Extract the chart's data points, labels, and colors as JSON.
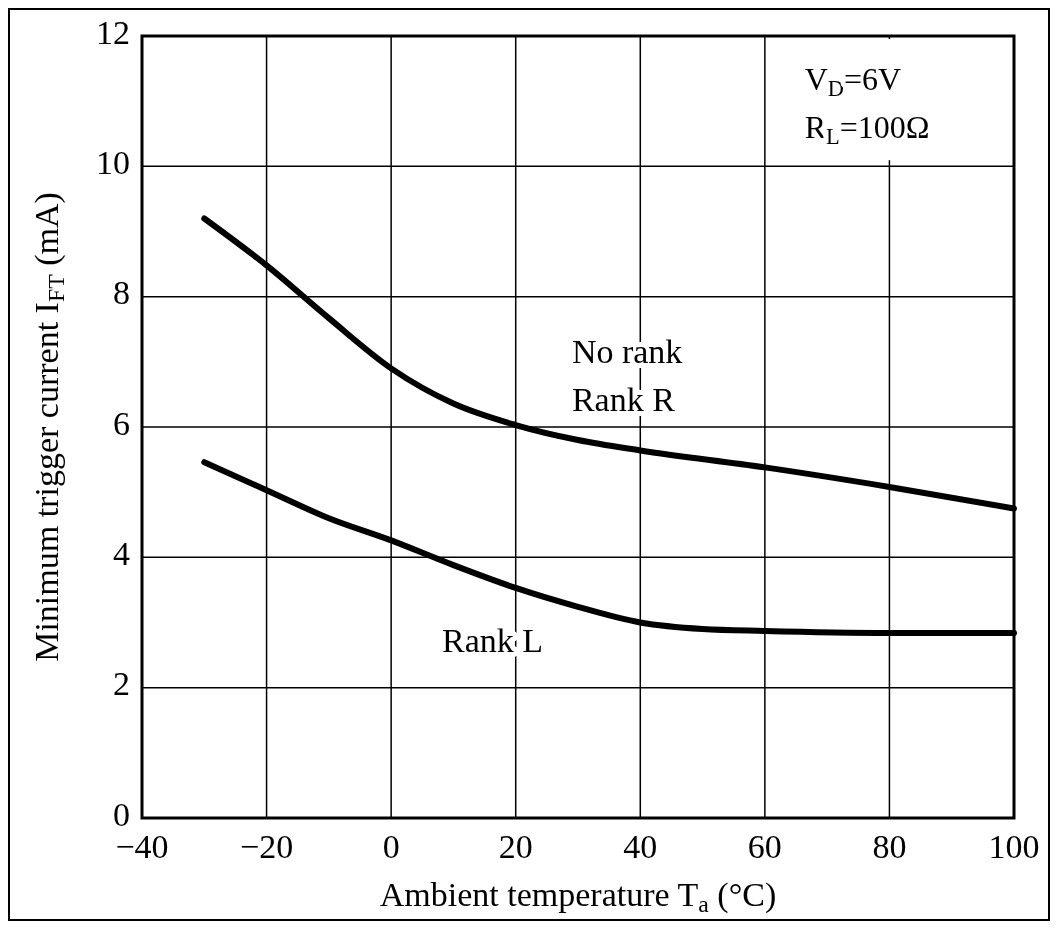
{
  "chart_data": {
    "type": "line",
    "xlabel": "Ambient temperature T$_{a}$ (°C)",
    "ylabel": "Minimum trigger current I$_{FT}$ (mA)",
    "xlim": [
      -40,
      100
    ],
    "xticks": [
      {
        "value": -40,
        "label": "−40"
      },
      {
        "value": -20,
        "label": "−20"
      },
      0,
      20,
      40,
      60,
      80,
      100
    ],
    "ylim": [
      0,
      12
    ],
    "yticks": [
      0,
      2,
      4,
      6,
      8,
      10,
      12
    ],
    "grid": true,
    "line_style": "solid",
    "series": [
      {
        "color": "#000000",
        "x": [
          -30,
          -20,
          -10,
          0,
          10,
          20,
          30,
          40,
          60,
          80,
          100
        ],
        "values": [
          9.2,
          8.48,
          7.67,
          6.9,
          6.36,
          6.03,
          5.8,
          5.64,
          5.38,
          5.08,
          4.75
        ]
      },
      {
        "color": "#000000",
        "x": [
          -30,
          -20,
          -10,
          0,
          10,
          20,
          30,
          40,
          50,
          60,
          80,
          100
        ],
        "values": [
          5.46,
          5.03,
          4.6,
          4.26,
          3.88,
          3.53,
          3.24,
          3.0,
          2.9,
          2.87,
          2.84,
          2.84
        ]
      }
    ],
    "annotations": [
      "No rank",
      "Rank R",
      "Rank L",
      "V$_{D}$=6V",
      "R$_{L}$=100Ω"
    ]
  }
}
